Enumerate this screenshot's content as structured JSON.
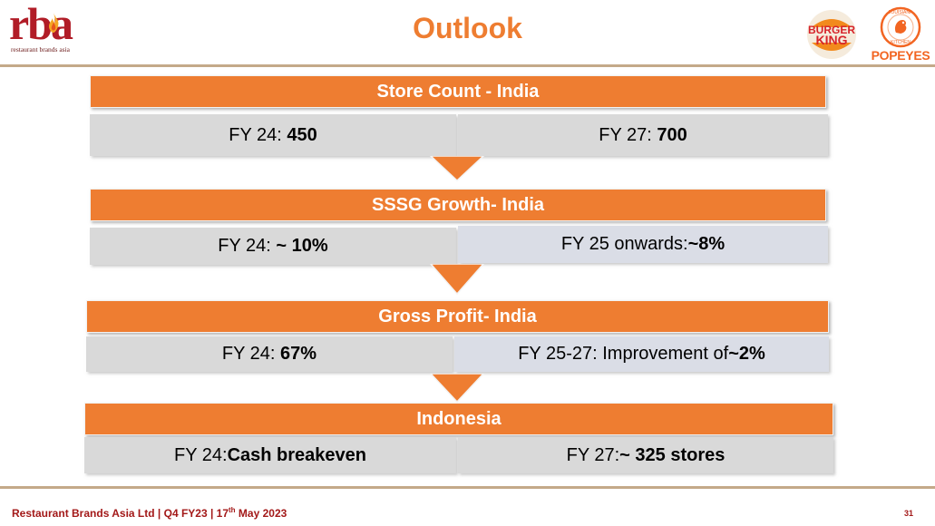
{
  "header": {
    "title": "Outlook",
    "rba_logo": {
      "letters": "rba",
      "tagline": "restaurant brands asia"
    },
    "bk_logo": {
      "line1": "BURGER",
      "line2": "KING"
    },
    "popeyes_logo": {
      "ring_top": "LOUISIANA",
      "ring_bottom": "KITCHEN",
      "word": "POPEYES"
    }
  },
  "blocks": [
    {
      "title": "Store Count - India",
      "left": {
        "label": "FY 24: ",
        "value": "450"
      },
      "right": {
        "label": "FY 27: ",
        "value": "700"
      }
    },
    {
      "title": "SSSG Growth- India",
      "left": {
        "label": "FY 24: ",
        "value": "~ 10%"
      },
      "right": {
        "label": "FY 25 onwards: ",
        "value": "~8%"
      }
    },
    {
      "title": "Gross Profit- India",
      "left": {
        "label": "FY 24: ",
        "value": "67%"
      },
      "right": {
        "label": "FY 25-27: Improvement of ",
        "value": "~2%"
      }
    },
    {
      "title": "Indonesia",
      "left": {
        "label": "FY 24: ",
        "value": "Cash breakeven"
      },
      "right": {
        "label": "FY 27: ",
        "value": "~ 325 stores"
      }
    }
  ],
  "footer": {
    "text_before": "Restaurant Brands Asia Ltd | Q4 FY23 | 17",
    "superscript": "th",
    "text_after": " May 2023",
    "page_number": "31"
  },
  "colors": {
    "accent": "#ee7d31",
    "cell": "#d9d9d9",
    "brand_red": "#b11c27",
    "rule": "#c4a989"
  }
}
